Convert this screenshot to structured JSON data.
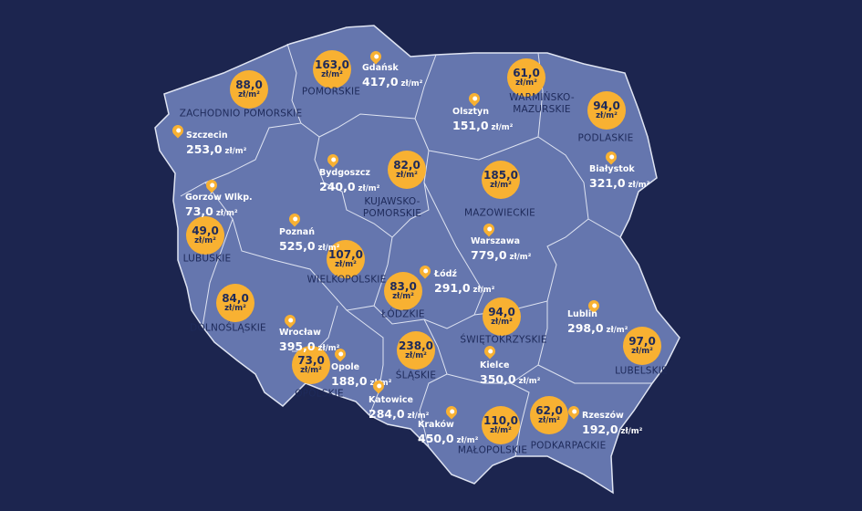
{
  "colors": {
    "background": "#1c254f",
    "land": "#6576ae",
    "border": "#dfe4f2",
    "bubble": "#f8b132",
    "region_text": "#1e2a5a",
    "city_text": "#ffffff"
  },
  "unit": "zł/m²",
  "regions": [
    {
      "name": "ZACHODNIO POMORSKIE",
      "value": "88,0"
    },
    {
      "name": "POMORSKIE",
      "value": "163,0"
    },
    {
      "name": "WARMIŃSKO-\nMAZURSKIE",
      "value": "61,0"
    },
    {
      "name": "PODLASKIE",
      "value": "94,0"
    },
    {
      "name": "KUJAWSKO-\nPOMORSKIE",
      "value": "82,0"
    },
    {
      "name": "MAZOWIECKIE",
      "value": "185,0"
    },
    {
      "name": "LUBUSKIE",
      "value": "49,0"
    },
    {
      "name": "WIELKOPOLSKIE",
      "value": "107,0"
    },
    {
      "name": "ŁÓDZKIE",
      "value": "83,0"
    },
    {
      "name": "DOLNOŚLĄSKIE",
      "value": "84,0"
    },
    {
      "name": "ŚWIĘTOKRZYSKIE",
      "value": "94,0"
    },
    {
      "name": "LUBELSKIE",
      "value": "97,0"
    },
    {
      "name": "OPOLSKIE",
      "value": "73,0"
    },
    {
      "name": "ŚLĄSKIE",
      "value": "238,0"
    },
    {
      "name": "MAŁOPOLSKIE",
      "value": "110,0"
    },
    {
      "name": "PODKARPACKIE",
      "value": "62,0"
    }
  ],
  "cities": [
    {
      "name": "Gdańsk",
      "value": "417,0",
      "icon": "map-pin-icon"
    },
    {
      "name": "Olsztyn",
      "value": "151,0",
      "icon": "map-pin-icon"
    },
    {
      "name": "Szczecin",
      "value": "253,0",
      "icon": "map-pin-icon"
    },
    {
      "name": "Białystok",
      "value": "321,0",
      "icon": "map-pin-icon"
    },
    {
      "name": "Bydgoszcz",
      "value": "240,0",
      "icon": "map-pin-icon"
    },
    {
      "name": "Gorzów Wlkp.",
      "value": "73,0",
      "icon": "map-pin-icon"
    },
    {
      "name": "Poznań",
      "value": "525,0",
      "icon": "map-pin-icon"
    },
    {
      "name": "Warszawa",
      "value": "779,0",
      "icon": "map-pin-icon"
    },
    {
      "name": "Łódź",
      "value": "291,0",
      "icon": "map-pin-icon"
    },
    {
      "name": "Lublin",
      "value": "298,0",
      "icon": "map-pin-icon"
    },
    {
      "name": "Wrocław",
      "value": "395,0",
      "icon": "map-pin-icon"
    },
    {
      "name": "Opole",
      "value": "188,0",
      "icon": "map-pin-icon"
    },
    {
      "name": "Kielce",
      "value": "350,0",
      "icon": "map-pin-icon"
    },
    {
      "name": "Katowice",
      "value": "284,0",
      "icon": "map-pin-icon"
    },
    {
      "name": "Kraków",
      "value": "450,0",
      "icon": "map-pin-icon"
    },
    {
      "name": "Rzeszów",
      "value": "192,0",
      "icon": "map-pin-icon"
    }
  ]
}
